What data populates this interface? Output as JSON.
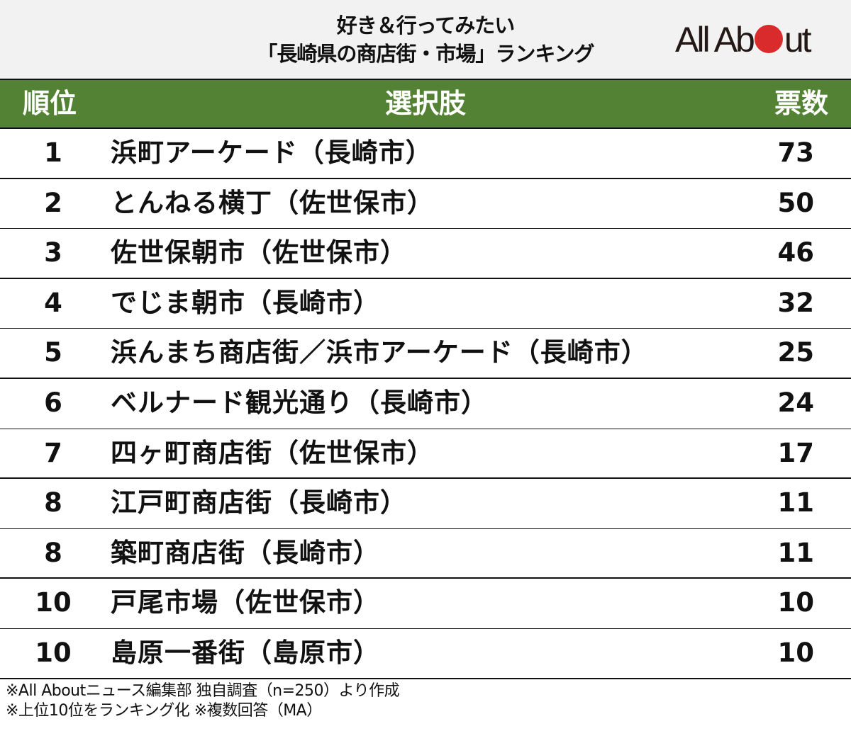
{
  "title": {
    "line1": "好き＆行ってみたい",
    "line2": "「長崎県の商店街・市場」ランキング"
  },
  "logo": {
    "prefix": "All Ab",
    "suffix": "ut",
    "dot_color": "#d92b2b"
  },
  "colors": {
    "header_bg": "#548235",
    "title_bg": "#f2f2f2"
  },
  "table": {
    "headers": {
      "rank": "順位",
      "choice": "選択肢",
      "votes": "票数"
    },
    "rows": [
      {
        "rank": "1",
        "choice": "浜町アーケード（長崎市）",
        "votes": "73"
      },
      {
        "rank": "2",
        "choice": "とんねる横丁（佐世保市）",
        "votes": "50"
      },
      {
        "rank": "3",
        "choice": "佐世保朝市（佐世保市）",
        "votes": "46"
      },
      {
        "rank": "4",
        "choice": "でじま朝市（長崎市）",
        "votes": "32"
      },
      {
        "rank": "5",
        "choice": "浜んまち商店街／浜市アーケード（長崎市）",
        "votes": "25"
      },
      {
        "rank": "6",
        "choice": "ベルナード観光通り（長崎市）",
        "votes": "24"
      },
      {
        "rank": "7",
        "choice": "四ヶ町商店街（佐世保市）",
        "votes": "17"
      },
      {
        "rank": "8",
        "choice": "江戸町商店街（長崎市）",
        "votes": "11"
      },
      {
        "rank": "8",
        "choice": "築町商店街（長崎市）",
        "votes": "11"
      },
      {
        "rank": "10",
        "choice": "戸尾市場（佐世保市）",
        "votes": "10"
      },
      {
        "rank": "10",
        "choice": "島原一番街（島原市）",
        "votes": "10"
      }
    ]
  },
  "footer": {
    "line1": "※All Aboutニュース編集部 独自調査（n=250）より作成",
    "line2": "※上位10位をランキング化 ※複数回答（MA）"
  }
}
